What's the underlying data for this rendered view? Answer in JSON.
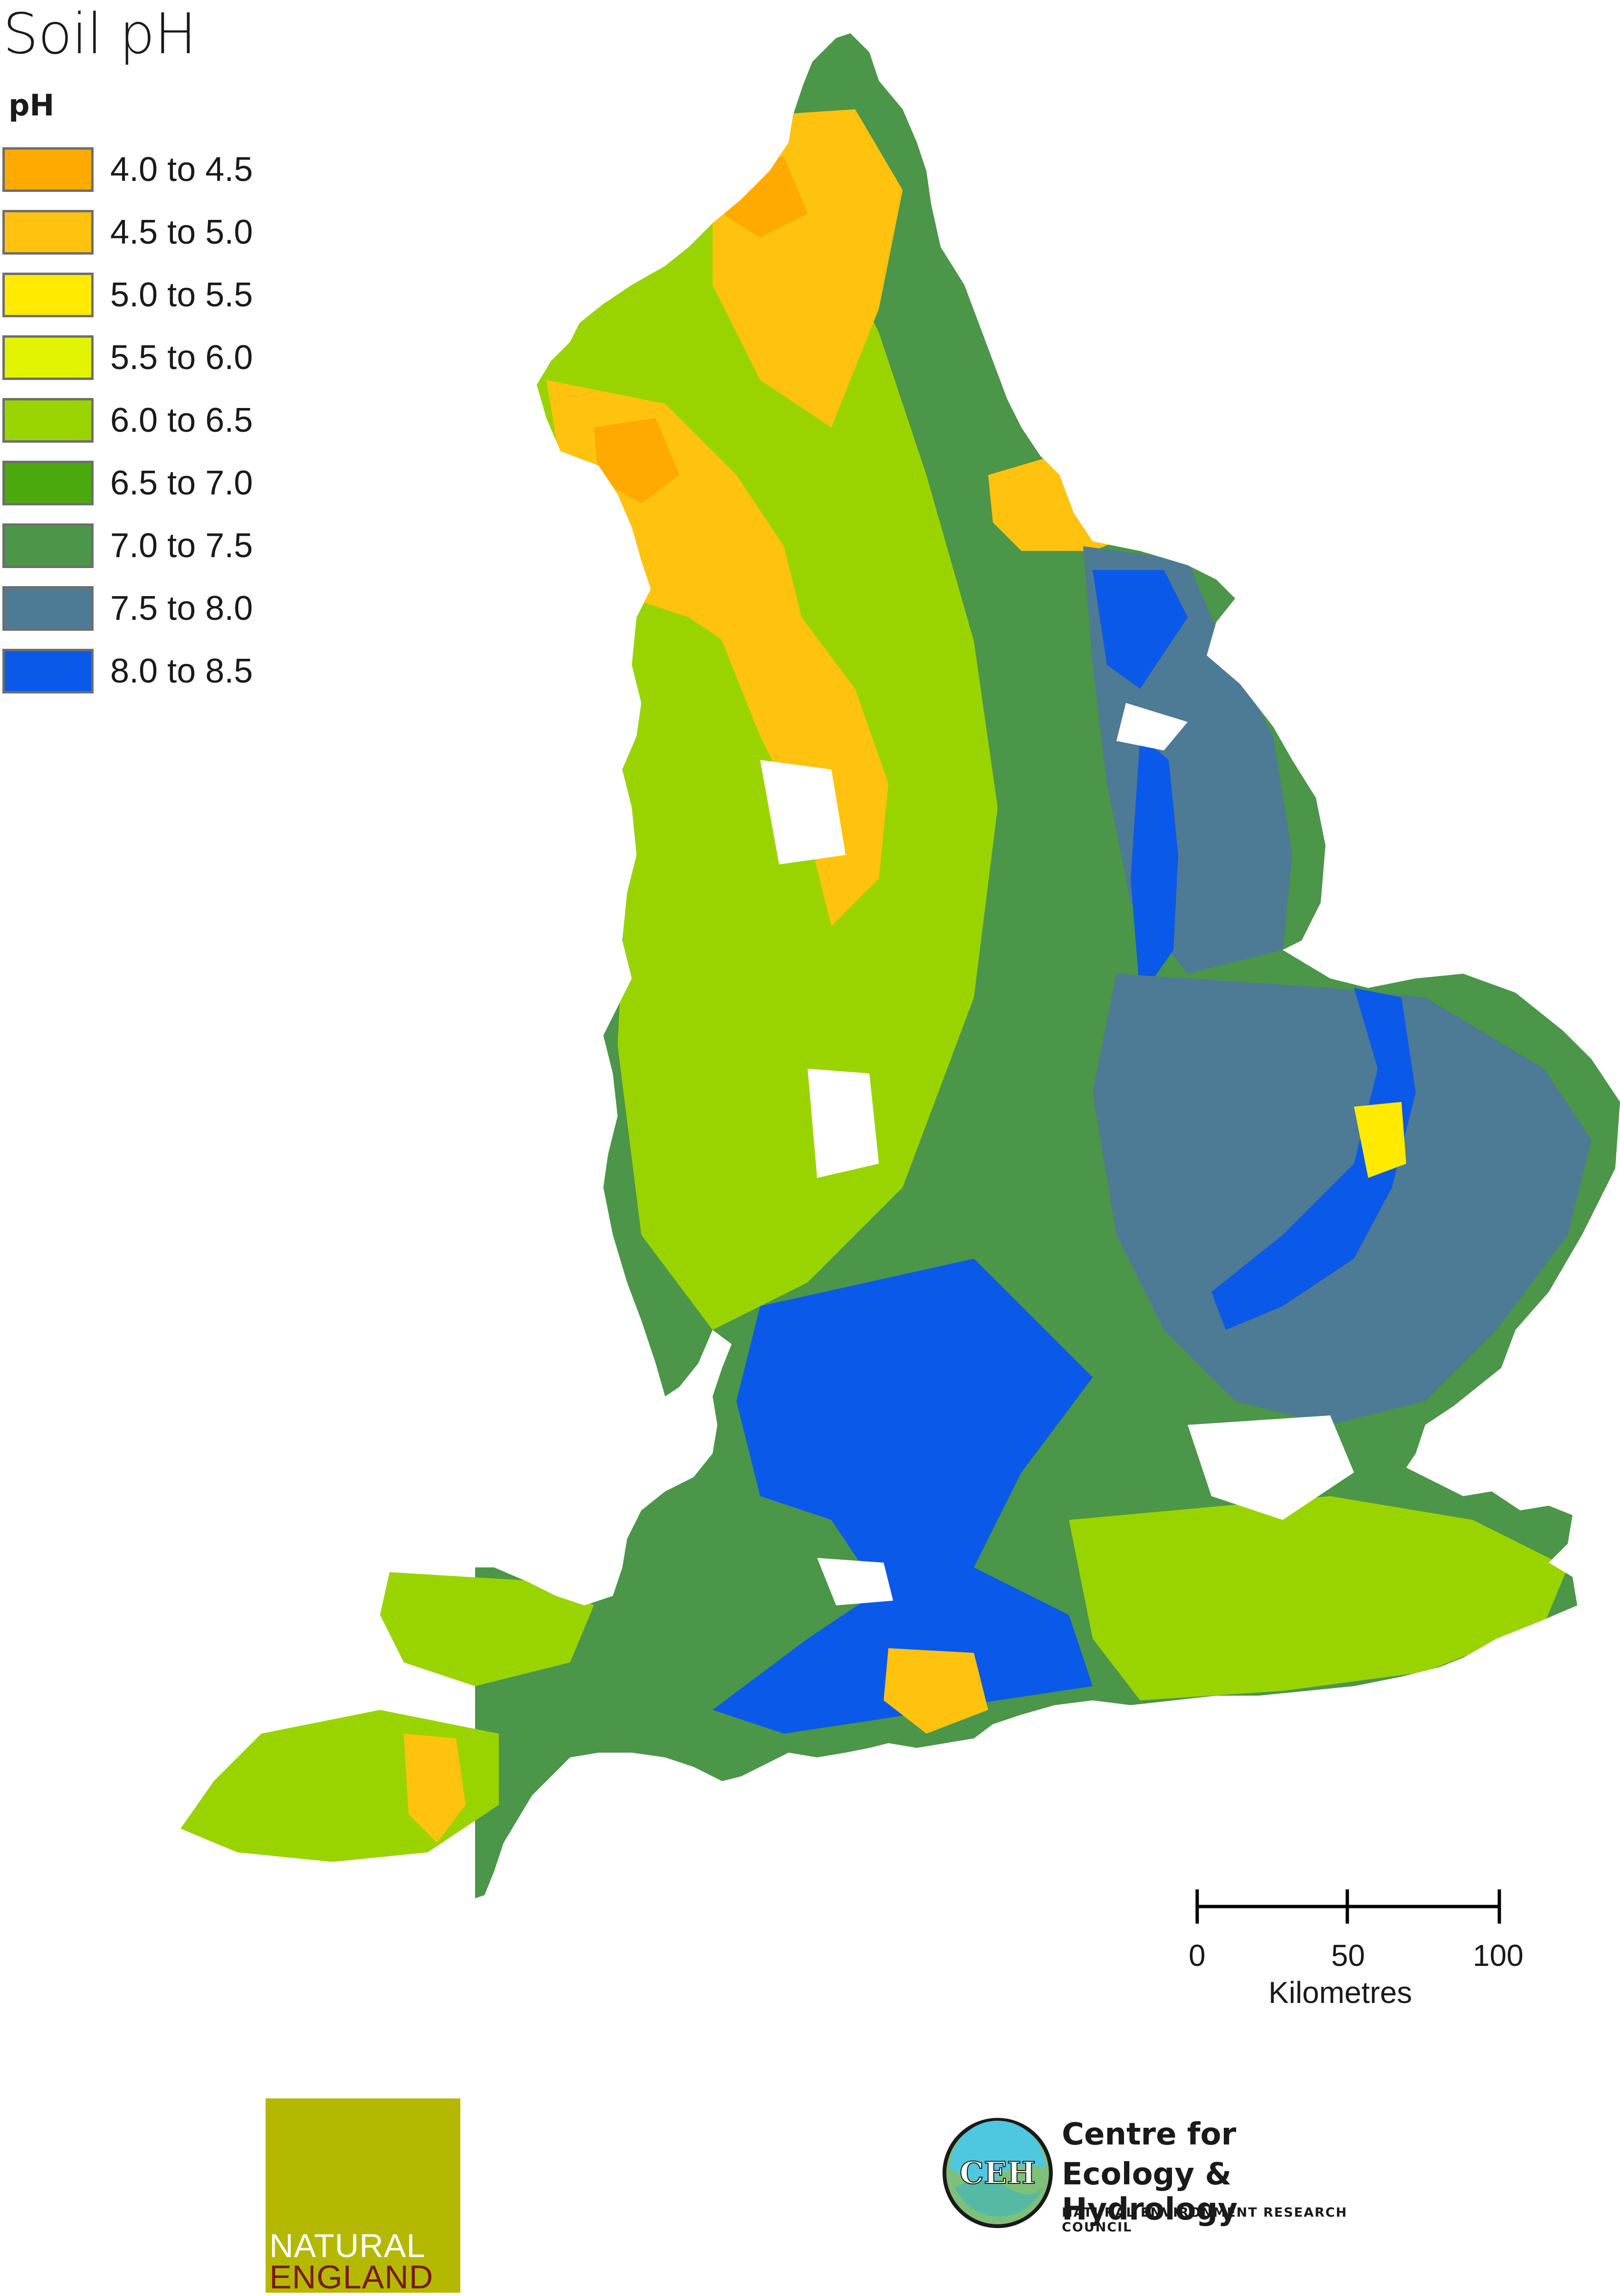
{
  "title": "Soil pH",
  "legend": {
    "heading": "pH",
    "items": [
      {
        "label": "4.0 to 4.5",
        "color": "#ffaa00"
      },
      {
        "label": "4.5 to 5.0",
        "color": "#ffc20e"
      },
      {
        "label": "5.0 to 5.5",
        "color": "#ffea00"
      },
      {
        "label": "5.5 to 6.0",
        "color": "#e2f300"
      },
      {
        "label": "6.0 to 6.5",
        "color": "#9ad400"
      },
      {
        "label": "6.5 to 7.0",
        "color": "#4ca90d"
      },
      {
        "label": "7.0 to 7.5",
        "color": "#4b9648"
      },
      {
        "label": "7.5 to 8.0",
        "color": "#4d7a95"
      },
      {
        "label": "8.0 to 8.5",
        "color": "#0b59e8"
      }
    ]
  },
  "map": {
    "region": "England",
    "background": "#ffffff"
  },
  "scalebar": {
    "ticks": [
      "0",
      "50",
      "100"
    ],
    "unit": "Kilometres"
  },
  "logos": {
    "natural_england": {
      "line1": "NATURAL",
      "line2": "ENGLAND",
      "color": "#b5b800"
    },
    "ceh": {
      "monogram": "CEH",
      "line1": "Centre for",
      "line2": "Ecology & Hydrology",
      "line3": "NATURAL ENVIRONMENT RESEARCH COUNCIL"
    }
  }
}
